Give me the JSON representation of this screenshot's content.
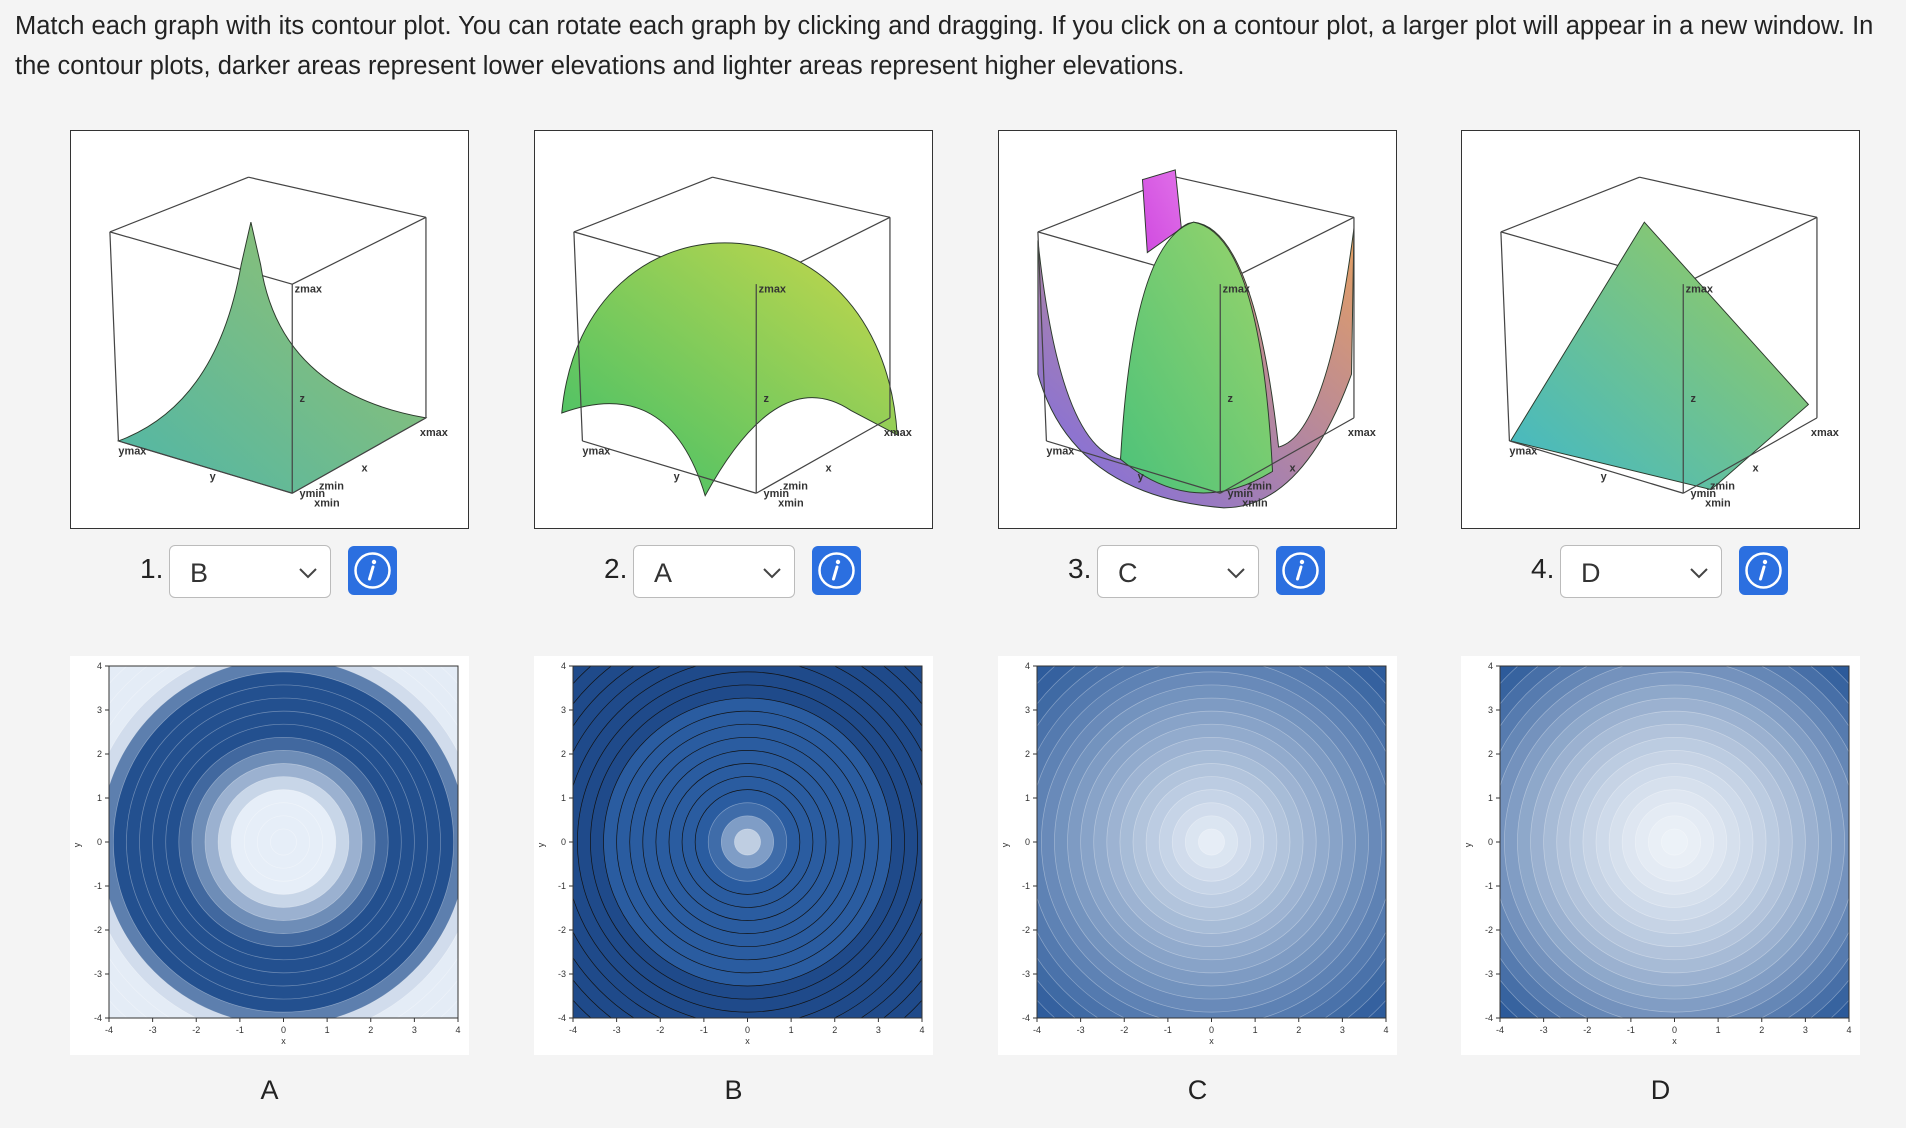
{
  "instructions": "Match each graph with its contour plot. You can rotate each graph by clicking and dragging. If you click on a contour plot, a larger plot will appear in a new window. In the contour plots, darker areas represent lower elevations and lighter areas represent higher elevations.",
  "graph_axis_labels": [
    "zmax",
    "xmax",
    "ymax",
    "x",
    "y",
    "z",
    "zmin",
    "ymin",
    "xmin"
  ],
  "graphs": [
    {
      "number": "1.",
      "answer": "B"
    },
    {
      "number": "2.",
      "answer": "A"
    },
    {
      "number": "3.",
      "answer": "C"
    },
    {
      "number": "4.",
      "answer": "D"
    }
  ],
  "contour_ticks": [
    -4,
    -3,
    -2,
    -1,
    0,
    1,
    2,
    3,
    4
  ],
  "contour_axis_labels": [
    "x",
    "y"
  ],
  "contours": [
    {
      "label": "A"
    },
    {
      "label": "B"
    },
    {
      "label": "C"
    },
    {
      "label": "D"
    }
  ]
}
